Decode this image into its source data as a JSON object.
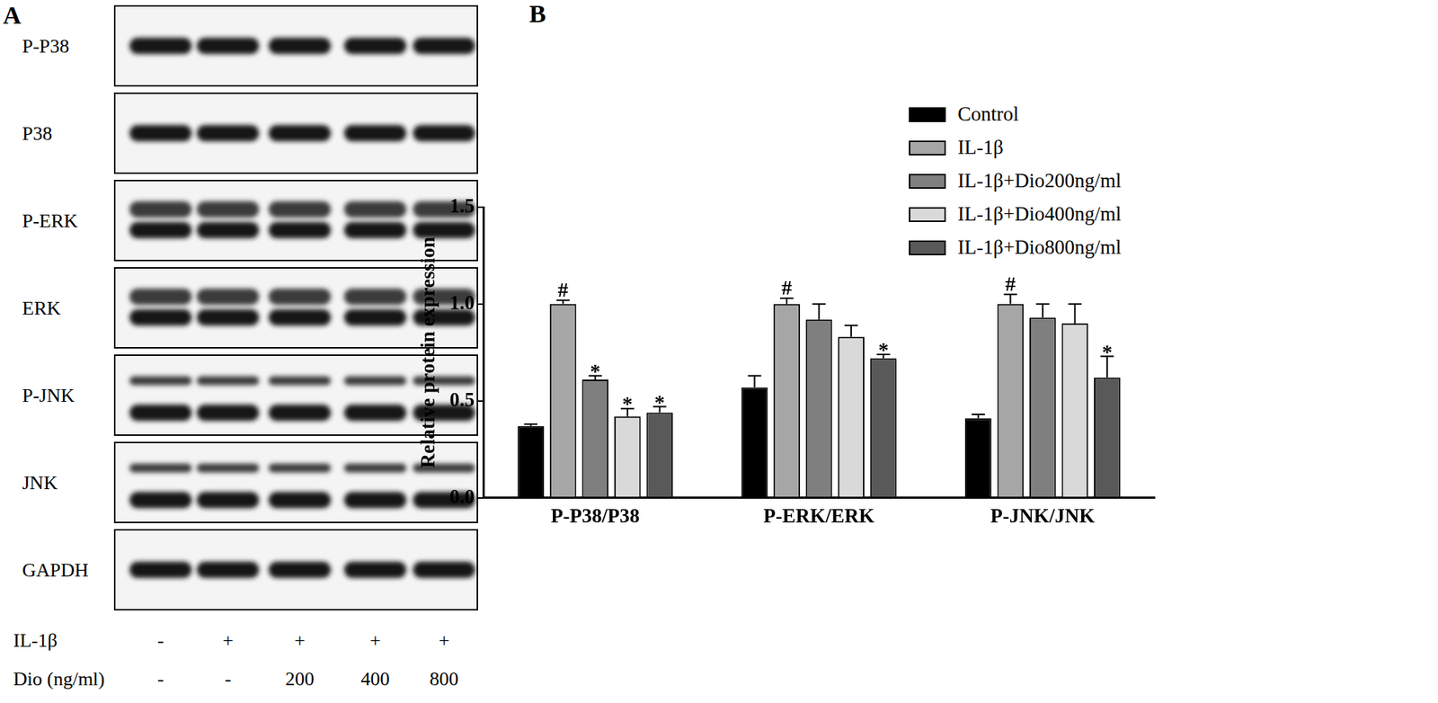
{
  "blot": {
    "panel_label": "A",
    "rows": [
      "P-P38",
      "P38",
      "P-ERK",
      "ERK",
      "P-JNK",
      "JNK",
      "GAPDH"
    ],
    "lanes": [
      {
        "label": "IL-1β",
        "values": [
          "-",
          "+",
          "+",
          "+",
          "+"
        ]
      },
      {
        "label": "Dio (ng/ml)",
        "values": [
          "-",
          "-",
          "200",
          "400",
          "800"
        ]
      }
    ]
  },
  "chart_data": {
    "type": "bar",
    "panel_label": "B",
    "categories": [
      "P-P38/P38",
      "P-ERK/ERK",
      "P-JNK/JNK"
    ],
    "y_label": "Relative protein expression",
    "ylim": [
      0,
      1.5
    ],
    "yticks": [
      {
        "value": 0,
        "label": "0.0"
      },
      0.5,
      {
        "value": 1,
        "label": "1.0"
      },
      1.5
    ],
    "grid": false,
    "legend": "top-right",
    "series": [
      {
        "name": "Control",
        "color": "#000000",
        "values": [
          0.37,
          0.57,
          0.41
        ],
        "errors": [
          0.01,
          0.06,
          0.02
        ],
        "marks": [
          null,
          null,
          null
        ]
      },
      {
        "name": "IL-1β",
        "color": "#a6a6a6",
        "values": [
          1.0,
          1.0,
          1.0
        ],
        "errors": [
          0.02,
          0.03,
          0.05
        ],
        "marks": [
          "#",
          "#",
          "#"
        ]
      },
      {
        "name": "IL-1β+Dio200ng/ml",
        "color": "#7f7f7f",
        "values": [
          0.61,
          0.92,
          0.93
        ],
        "errors": [
          0.02,
          0.08,
          0.07
        ],
        "marks": [
          "*",
          null,
          null
        ]
      },
      {
        "name": "IL-1β+Dio400ng/ml",
        "color": "#d9d9d9",
        "values": [
          0.42,
          0.83,
          0.9
        ],
        "errors": [
          0.04,
          0.06,
          0.1
        ],
        "marks": [
          "*",
          null,
          null
        ]
      },
      {
        "name": "IL-1β+Dio800ng/ml",
        "color": "#595959",
        "values": [
          0.44,
          0.72,
          0.62
        ],
        "errors": [
          0.03,
          0.02,
          0.11
        ],
        "marks": [
          "*",
          "*",
          "*"
        ]
      }
    ]
  }
}
